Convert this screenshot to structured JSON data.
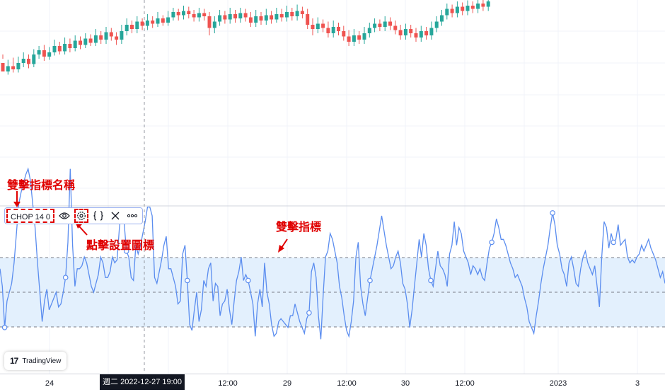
{
  "indicator_legend": {
    "name": "CHOP 14 0",
    "visibility_icon": "eye-icon",
    "settings_icon": "gear-icon",
    "source_code_icon": "curly-braces-icon",
    "remove_icon": "close-icon",
    "more_icon": "more-horizontal-icon"
  },
  "annotations": {
    "double_click_name": "雙擊指標名稱",
    "click_settings": "點擊設置圖標",
    "double_click_indicator": "雙擊指標"
  },
  "time_axis": {
    "labels": [
      "24",
      "12:00",
      "29",
      "12:00",
      "30",
      "12:00",
      "2023",
      "3"
    ],
    "crosshair_label": "週二 2022-12-27   19:00"
  },
  "branding": {
    "logo_text": "TradingView",
    "logo_mark": "17"
  },
  "colors": {
    "bullish": "#26a69a",
    "bearish": "#ef5350",
    "indicator_line": "#5b8def",
    "band_fill": "#e3f0fd",
    "annotation_red": "#e00000"
  },
  "chop_values": [
    58,
    52,
    38,
    47,
    50,
    53,
    60,
    70,
    80,
    84,
    87,
    90,
    92,
    88,
    80,
    72,
    60,
    50,
    40,
    47,
    51,
    44,
    46,
    48,
    50,
    45,
    46,
    50,
    55,
    67,
    92,
    66,
    52,
    58,
    58,
    59,
    62,
    60,
    56,
    52,
    50,
    53,
    56,
    62,
    60,
    55,
    55,
    57,
    62,
    60,
    61,
    72,
    78,
    74,
    64,
    62,
    55,
    54,
    66,
    63,
    66,
    70,
    74,
    79,
    79,
    76,
    55,
    53,
    57,
    61,
    66,
    69,
    58,
    58,
    55,
    52,
    46,
    47,
    63,
    66,
    54,
    39,
    37,
    44,
    50,
    40,
    44,
    54,
    52,
    58,
    60,
    47,
    53,
    52,
    42,
    46,
    47,
    51,
    44,
    39,
    47,
    54,
    57,
    62,
    54,
    56,
    54,
    50,
    46,
    35,
    46,
    51,
    45,
    60,
    50,
    46,
    39,
    35,
    36,
    40,
    41,
    40,
    39,
    38,
    42,
    42,
    46,
    43,
    40,
    38,
    36,
    41,
    43,
    57,
    60,
    55,
    42,
    34,
    49,
    62,
    64,
    70,
    68,
    64,
    60,
    52,
    48,
    42,
    37,
    35,
    40,
    47,
    62,
    67,
    52,
    46,
    42,
    48,
    54,
    58,
    62,
    66,
    71,
    76,
    71,
    66,
    62,
    58,
    59,
    62,
    64,
    60,
    53,
    51,
    46,
    38,
    44,
    52,
    60,
    68,
    62,
    70,
    66,
    58,
    54,
    52,
    58,
    64,
    59,
    58,
    56,
    52,
    63,
    66,
    74,
    66,
    72,
    70,
    64,
    62,
    60,
    56,
    59,
    58,
    56,
    58,
    55,
    54,
    60,
    65,
    67,
    70,
    75,
    72,
    68,
    68,
    66,
    63,
    60,
    58,
    55,
    56,
    54,
    52,
    48,
    45,
    40,
    38,
    36,
    42,
    47,
    53,
    58,
    62,
    66,
    72,
    77,
    73,
    66,
    63,
    58,
    56,
    52,
    60,
    62,
    58,
    53,
    52,
    58,
    62,
    64,
    60,
    58,
    56,
    59,
    52,
    45,
    62,
    74,
    72,
    65,
    70,
    67,
    68,
    73,
    66,
    67,
    68,
    62,
    60,
    61,
    60,
    62,
    63,
    66,
    64,
    66,
    68,
    65,
    63,
    61,
    58,
    55,
    57,
    53
  ],
  "candles": [
    [
      104,
      96,
      112,
      108
    ],
    [
      96,
      101,
      107,
      93
    ],
    [
      101,
      98,
      109,
      95
    ],
    [
      98,
      104,
      110,
      95
    ],
    [
      104,
      108,
      114,
      100
    ],
    [
      108,
      103,
      112,
      99
    ],
    [
      103,
      112,
      117,
      100
    ],
    [
      112,
      116,
      120,
      108
    ],
    [
      116,
      110,
      121,
      106
    ],
    [
      110,
      114,
      119,
      107
    ],
    [
      114,
      120,
      126,
      111
    ],
    [
      120,
      115,
      124,
      112
    ],
    [
      115,
      122,
      128,
      112
    ],
    [
      122,
      118,
      127,
      114
    ],
    [
      118,
      125,
      130,
      115
    ],
    [
      125,
      121,
      129,
      117
    ],
    [
      121,
      127,
      132,
      118
    ],
    [
      127,
      123,
      131,
      120
    ],
    [
      123,
      130,
      136,
      120
    ],
    [
      130,
      126,
      134,
      122
    ],
    [
      126,
      133,
      138,
      122
    ],
    [
      133,
      129,
      137,
      125
    ],
    [
      129,
      126,
      133,
      121
    ],
    [
      126,
      134,
      140,
      122
    ],
    [
      134,
      140,
      146,
      130
    ],
    [
      140,
      136,
      144,
      132
    ],
    [
      136,
      143,
      148,
      132
    ],
    [
      143,
      139,
      146,
      135
    ],
    [
      139,
      144,
      150,
      135
    ],
    [
      144,
      141,
      148,
      137
    ],
    [
      141,
      146,
      152,
      138
    ],
    [
      146,
      142,
      149,
      139
    ],
    [
      142,
      147,
      153,
      139
    ],
    [
      147,
      152,
      156,
      144
    ],
    [
      152,
      149,
      155,
      144
    ],
    [
      149,
      153,
      158,
      145
    ],
    [
      153,
      150,
      157,
      146
    ],
    [
      150,
      147,
      154,
      143
    ],
    [
      147,
      151,
      156,
      143
    ],
    [
      151,
      148,
      155,
      144
    ],
    [
      148,
      137,
      152,
      130
    ],
    [
      137,
      143,
      148,
      132
    ],
    [
      143,
      149,
      154,
      139
    ],
    [
      149,
      145,
      153,
      141
    ],
    [
      145,
      150,
      156,
      141
    ],
    [
      150,
      146,
      154,
      142
    ],
    [
      146,
      151,
      156,
      142
    ],
    [
      151,
      147,
      155,
      143
    ],
    [
      147,
      142,
      152,
      138
    ],
    [
      142,
      148,
      154,
      138
    ],
    [
      148,
      144,
      152,
      140
    ],
    [
      144,
      149,
      155,
      140
    ],
    [
      149,
      145,
      153,
      141
    ],
    [
      145,
      150,
      156,
      142
    ],
    [
      150,
      147,
      155,
      143
    ],
    [
      147,
      152,
      158,
      143
    ],
    [
      152,
      148,
      156,
      144
    ],
    [
      148,
      153,
      159,
      144
    ],
    [
      153,
      150,
      157,
      146
    ],
    [
      150,
      140,
      155,
      136
    ],
    [
      140,
      136,
      146,
      130
    ],
    [
      136,
      141,
      147,
      132
    ],
    [
      141,
      137,
      145,
      133
    ],
    [
      137,
      132,
      143,
      128
    ],
    [
      132,
      138,
      144,
      128
    ],
    [
      138,
      134,
      142,
      130
    ],
    [
      134,
      129,
      139,
      125
    ],
    [
      129,
      124,
      135,
      120
    ],
    [
      124,
      130,
      136,
      120
    ],
    [
      130,
      126,
      134,
      122
    ],
    [
      126,
      132,
      138,
      122
    ],
    [
      132,
      137,
      142,
      128
    ],
    [
      137,
      141,
      146,
      133
    ],
    [
      141,
      138,
      145,
      134
    ],
    [
      138,
      143,
      148,
      134
    ],
    [
      143,
      139,
      147,
      135
    ],
    [
      139,
      135,
      144,
      131
    ],
    [
      135,
      130,
      140,
      126
    ],
    [
      130,
      136,
      141,
      126
    ],
    [
      136,
      132,
      140,
      128
    ],
    [
      132,
      128,
      137,
      124
    ],
    [
      128,
      134,
      139,
      124
    ],
    [
      134,
      130,
      138,
      126
    ],
    [
      130,
      137,
      143,
      126
    ],
    [
      137,
      143,
      148,
      133
    ],
    [
      143,
      149,
      154,
      139
    ],
    [
      149,
      155,
      160,
      145
    ],
    [
      155,
      151,
      159,
      147
    ],
    [
      151,
      157,
      162,
      147
    ],
    [
      157,
      153,
      161,
      149
    ],
    [
      153,
      158,
      163,
      149
    ],
    [
      158,
      155,
      162,
      151
    ],
    [
      155,
      160,
      165,
      151
    ],
    [
      160,
      157,
      164,
      153
    ],
    [
      157,
      162,
      167,
      153
    ]
  ]
}
